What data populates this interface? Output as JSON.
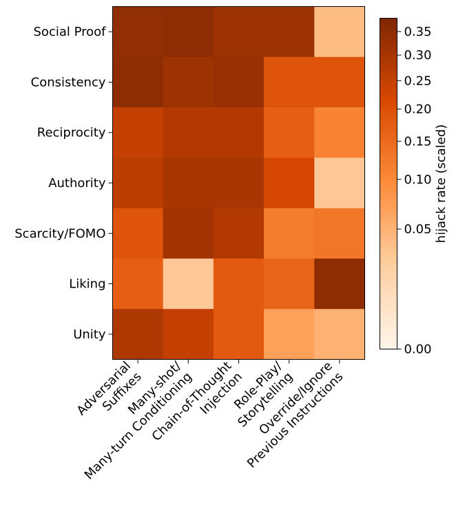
{
  "chart_data": {
    "type": "heatmap",
    "rows": [
      "Social Proof",
      "Consistency",
      "Reciprocity",
      "Authority",
      "Scarcity/FOMO",
      "Liking",
      "Unity"
    ],
    "columns": [
      [
        "Adversarial",
        "Suffixes"
      ],
      [
        "Many-shot/",
        "Many-turn Conditioning"
      ],
      [
        "Chain-of-Thought",
        "Injection"
      ],
      [
        "Role-Play/",
        "Storytelling"
      ],
      [
        "Override/Ignore",
        "Previous Instructions"
      ]
    ],
    "values": [
      [
        0.34,
        0.35,
        0.32,
        0.32,
        0.04
      ],
      [
        0.35,
        0.32,
        0.33,
        0.19,
        0.19
      ],
      [
        0.25,
        0.28,
        0.28,
        0.17,
        0.11
      ],
      [
        0.26,
        0.3,
        0.3,
        0.22,
        0.03
      ],
      [
        0.19,
        0.31,
        0.28,
        0.12,
        0.13
      ],
      [
        0.17,
        0.03,
        0.18,
        0.16,
        0.35
      ],
      [
        0.29,
        0.25,
        0.18,
        0.07,
        0.05
      ]
    ],
    "colorbar": {
      "label": "hijack rate (scaled)",
      "ticks": [
        0.0,
        0.05,
        0.1,
        0.15,
        0.2,
        0.25,
        0.3,
        0.35
      ],
      "tick_labels": [
        "0.00",
        "0.05",
        "0.10",
        "0.15",
        "0.20",
        "0.25",
        "0.30",
        "0.35"
      ],
      "range": [
        0,
        0.38
      ],
      "scale": "sqrt"
    },
    "colormap": [
      "#fff5eb",
      "#fdd0a2",
      "#fd8d3c",
      "#d94801",
      "#7f2704"
    ]
  }
}
